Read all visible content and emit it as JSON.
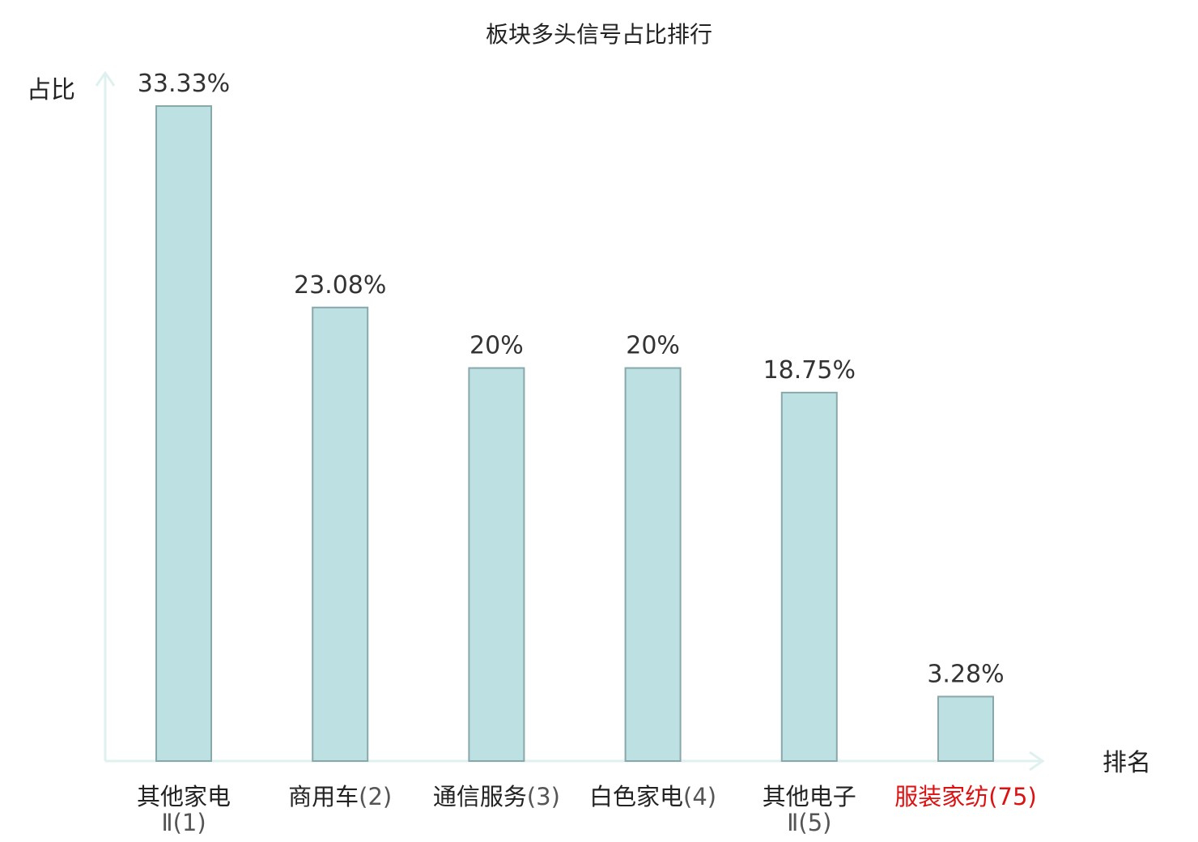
{
  "chart_data": {
    "type": "bar",
    "title": "板块多头信号占比排行",
    "ylabel": "占比",
    "xlabel": "排名",
    "categories": [
      "其他家电Ⅱ",
      "商用车",
      "通信服务",
      "白色家电",
      "其他电子Ⅱ",
      "服装家纺"
    ],
    "category_lines": [
      {
        "name": "其他家电",
        "rank": "Ⅱ(1)"
      },
      {
        "name": "商用车",
        "rank": "(2)"
      },
      {
        "name": "通信服务",
        "rank": "(3)"
      },
      {
        "name": "白色家电",
        "rank": "(4)"
      },
      {
        "name": "其他电子",
        "rank": "Ⅱ(5)"
      },
      {
        "name": "服装家纺",
        "rank": "(75)"
      }
    ],
    "ranks": [
      1,
      2,
      3,
      4,
      5,
      75
    ],
    "values": [
      33.33,
      23.08,
      20,
      20,
      18.75,
      3.28
    ],
    "value_labels": [
      "33.33%",
      "23.08%",
      "20%",
      "20%",
      "18.75%",
      "3.28%"
    ],
    "highlight_index": 5,
    "ylim": [
      0,
      35
    ],
    "grid": false,
    "colors": {
      "bar_fill": "#bde0e2",
      "bar_stroke": "#88a8aa",
      "axis": "#dff1ef",
      "highlight_text": "#dd1111"
    }
  }
}
